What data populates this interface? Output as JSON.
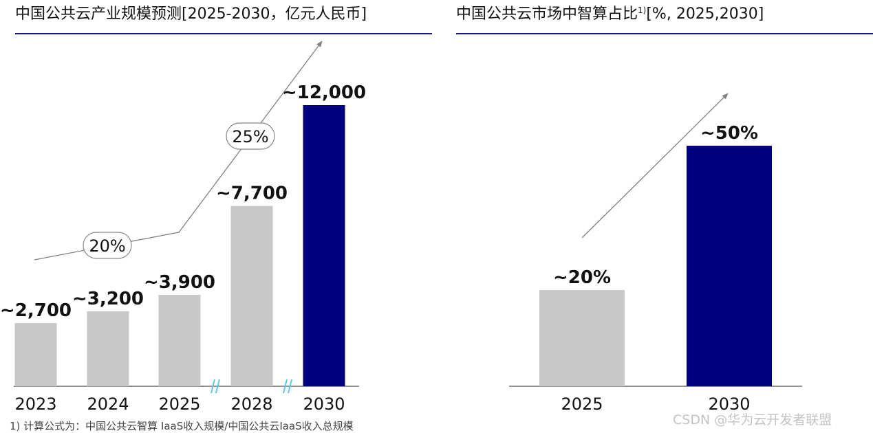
{
  "chart_data": [
    {
      "type": "bar",
      "title": "中国公共云产业规模预测[2025-2030，亿元人民币]",
      "categories": [
        "2023",
        "2024",
        "2025",
        "2028",
        "2030"
      ],
      "values": [
        2700,
        3200,
        3900,
        7700,
        12000
      ],
      "value_labels": [
        "~2,700",
        "~3,200",
        "~3,900",
        "~7,700",
        "~12,000"
      ],
      "bar_colors": [
        "#c8c8c8",
        "#c8c8c8",
        "#c8c8c8",
        "#c8c8c8",
        "#000080"
      ],
      "axis_breaks_after": [
        "2025",
        "2028"
      ],
      "growth_labels": [
        "20%",
        "25%"
      ],
      "ylim": [
        0,
        12000
      ]
    },
    {
      "type": "bar",
      "title_main": "中国公共云市场中智算占比",
      "title_sup": "1)",
      "title_suffix": "[%, 2025,2030]",
      "categories": [
        "2025",
        "2030"
      ],
      "values": [
        20,
        50
      ],
      "value_labels": [
        "~20%",
        "~50%"
      ],
      "bar_colors": [
        "#c8c8c8",
        "#000080"
      ],
      "ylim": [
        0,
        50
      ]
    }
  ],
  "colors": {
    "highlight_bar": "#000080",
    "base_bar": "#c8c8c8",
    "title_rule": "#1a1a7a",
    "axis_break": "#5bc8f0",
    "trend_arrow": "#808080"
  },
  "footnote": "1) 计算公式为：中国公共云智算 IaaS收入规模/中国公共云IaaS收入总规模",
  "watermark": "CSDN @华为云开发者联盟"
}
